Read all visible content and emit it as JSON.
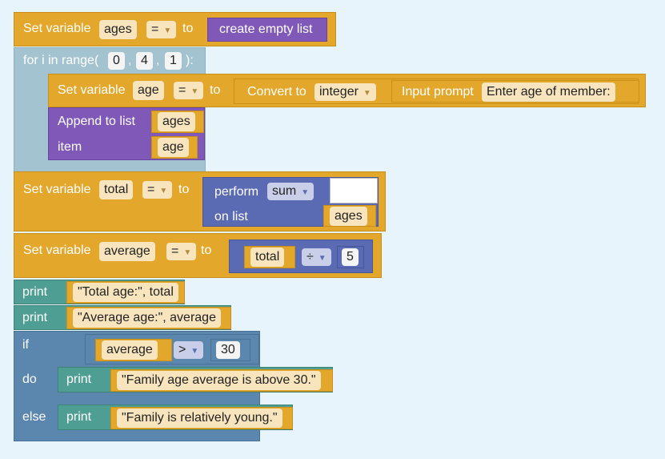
{
  "set_ages": {
    "label": "Set variable",
    "var": "ages",
    "op": "=",
    "to": "to",
    "value": "create empty list"
  },
  "for_loop": {
    "label": "for i in range(",
    "args": [
      "0",
      "4",
      "1"
    ],
    "sep": ",",
    "close": "):"
  },
  "set_age": {
    "label": "Set variable",
    "var": "age",
    "op": "=",
    "to": "to",
    "convert": "Convert to",
    "type": "integer",
    "input": "Input prompt",
    "prompt": "Enter age of member:"
  },
  "append": {
    "label": "Append to list",
    "list": "ages",
    "item_label": "item",
    "item": "age"
  },
  "set_total": {
    "label": "Set variable",
    "var": "total",
    "op": "=",
    "to": "to",
    "perform": "perform",
    "func": "sum",
    "on_list": "on list",
    "list": "ages"
  },
  "set_average": {
    "label": "Set variable",
    "var": "average",
    "op": "=",
    "to": "to",
    "left": "total",
    "divop": "÷",
    "right": "5"
  },
  "print1": {
    "label": "print",
    "value": "\"Total age:\", total"
  },
  "print2": {
    "label": "print",
    "value": "\"Average age:\", average"
  },
  "if_block": {
    "if_label": "if",
    "cond_var": "average",
    "cmp": ">",
    "cmp_val": "30",
    "do_label": "do",
    "do_print": "print",
    "do_value": "\"Family age average is above 30.\"",
    "else_label": "else",
    "else_print": "print",
    "else_value": "\"Family is relatively young.\""
  }
}
